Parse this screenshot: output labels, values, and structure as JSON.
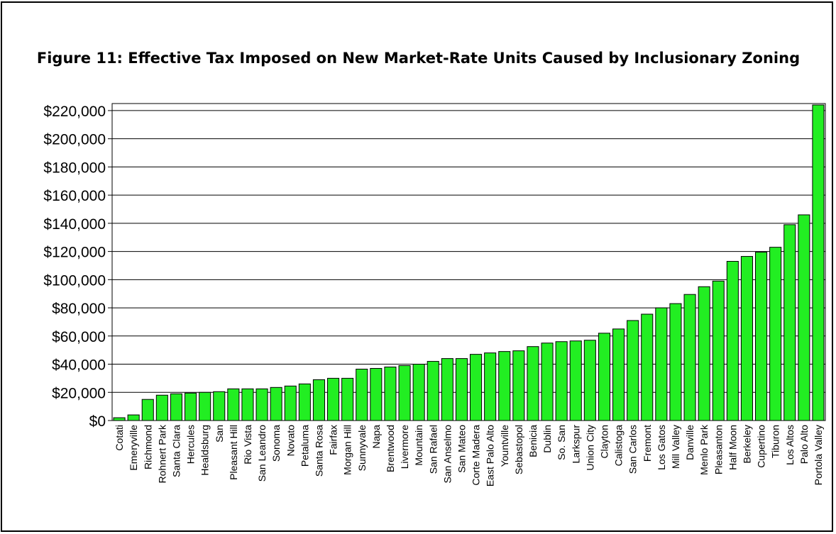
{
  "title": "Figure 11: Effective Tax Imposed on New Market-Rate Units Caused by Inclusionary Zoning",
  "colors": {
    "bar": "#22ee22",
    "bar_stroke": "#000000",
    "grid": "#000000"
  },
  "chart_data": {
    "type": "bar",
    "title": "Figure 11: Effective Tax Imposed on New Market-Rate Units Caused by Inclusionary Zoning",
    "xlabel": "",
    "ylabel": "",
    "ylim": [
      0,
      225000
    ],
    "yticks": [
      0,
      20000,
      40000,
      60000,
      80000,
      100000,
      120000,
      140000,
      160000,
      180000,
      200000,
      220000
    ],
    "ytick_labels": [
      "$0",
      "$20,000",
      "$40,000",
      "$60,000",
      "$80,000",
      "$100,000",
      "$120,000",
      "$140,000",
      "$160,000",
      "$180,000",
      "$200,000",
      "$220,000"
    ],
    "grid": true,
    "legend": "none",
    "categories": [
      "Cotati",
      "Emeryville",
      "Richmond",
      "Rohnert Park",
      "Santa Clara",
      "Hercules",
      "Healdsburg",
      "San",
      "Pleasant Hill",
      "Rio Vista",
      "San Leandro",
      "Sonoma",
      "Novato",
      "Petaluma",
      "Santa Rosa",
      "Fairfax",
      "Morgan Hill",
      "Sunnyvale",
      "Napa",
      "Brentwood",
      "Livermore",
      "Mountain",
      "San Rafael",
      "San Anselmo",
      "San Mateo",
      "Corte Madera",
      "East Palo Alto",
      "Yountville",
      "Sebastopol",
      "Benicia",
      "Dublin",
      "So. San",
      "Larkspur",
      "Union City",
      "Clayton",
      "Calistoga",
      "San Carlos",
      "Fremont",
      "Los Gatos",
      "Mill Valley",
      "Danville",
      "Menlo Park",
      "Pleasanton",
      "Half Moon",
      "Berkeley",
      "Cupertino",
      "Tiburon",
      "Los Altos",
      "Palo Alto",
      "Portola Valley"
    ],
    "values": [
      2000,
      4000,
      15000,
      18000,
      19000,
      19500,
      20000,
      20500,
      22500,
      22500,
      22500,
      23500,
      24500,
      26000,
      29000,
      30000,
      30000,
      36500,
      37000,
      38000,
      39000,
      40000,
      42000,
      44000,
      44000,
      47000,
      48000,
      49000,
      49500,
      52500,
      55000,
      56000,
      56500,
      57000,
      62000,
      65000,
      71000,
      75500,
      80000,
      83000,
      89500,
      95000,
      99000,
      113000,
      116500,
      119500,
      123000,
      139000,
      146000,
      224000
    ]
  }
}
